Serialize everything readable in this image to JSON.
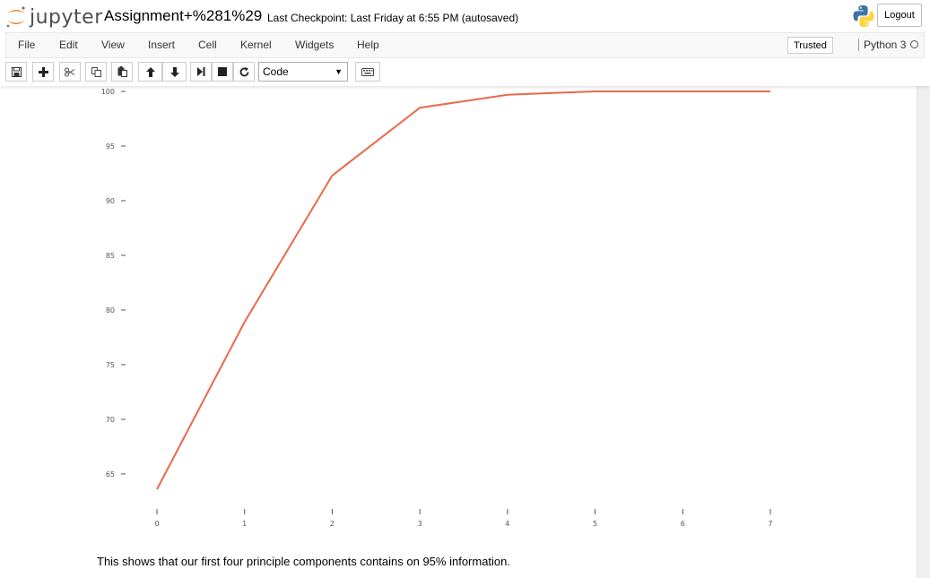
{
  "header": {
    "logo_text": "jupyter",
    "notebook_name": "Assignment+%281%29",
    "checkpoint": "Last Checkpoint: Last Friday at 6:55 PM (autosaved)",
    "logout_label": "Logout"
  },
  "menu": {
    "items": [
      "File",
      "Edit",
      "View",
      "Insert",
      "Cell",
      "Kernel",
      "Widgets",
      "Help"
    ],
    "trusted": "Trusted",
    "kernel": "Python 3"
  },
  "toolbar": {
    "cell_type": "Code",
    "buttons": [
      "save-icon",
      "plus-icon",
      "cut-icon",
      "copy-icon",
      "paste-icon",
      "arrow-up-icon",
      "arrow-down-icon",
      "run-icon",
      "stop-icon",
      "restart-icon",
      "keyboard-icon"
    ]
  },
  "chart_data": {
    "type": "line",
    "x": [
      0,
      1,
      2,
      3,
      4,
      5,
      6,
      7
    ],
    "series": [
      {
        "values": [
          63.6,
          78.9,
          92.3,
          98.5,
          99.7,
          100.0,
          100.0,
          100.0
        ],
        "color": "#e8694a"
      }
    ],
    "xticks": [
      0,
      1,
      2,
      3,
      4,
      5,
      6,
      7
    ],
    "yticks": [
      65,
      70,
      75,
      80,
      85,
      90,
      95,
      100
    ],
    "xlim": [
      0,
      7
    ],
    "ylim": [
      63.6,
      100
    ],
    "title": "",
    "xlabel": "",
    "ylabel": "",
    "grid": false
  },
  "output": {
    "text": "This shows that our first four principle components contains on 95% information."
  }
}
